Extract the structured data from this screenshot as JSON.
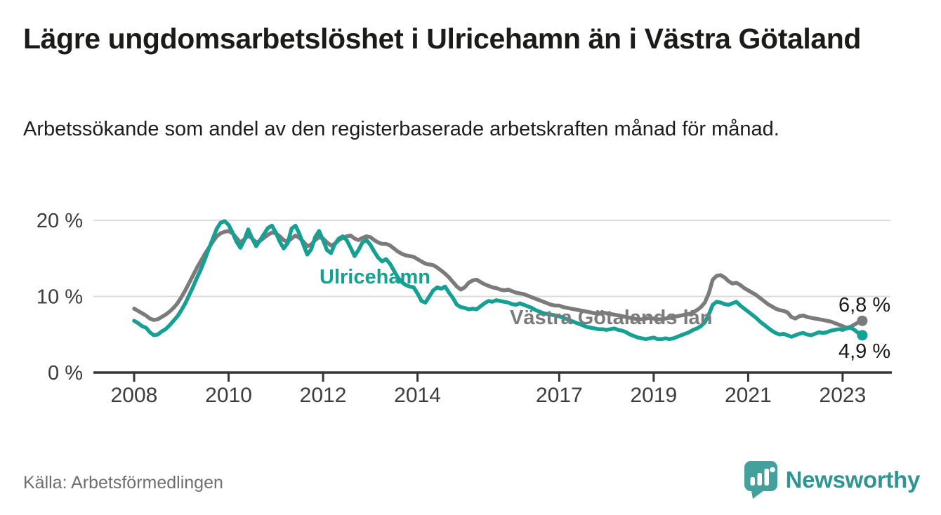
{
  "header": {
    "title": "Lägre ungdomsarbetslöshet i Ulricehamn än i Västra Götaland",
    "subtitle": "Arbetssökande som andel av den registerbaserade arbetskraften månad för månad."
  },
  "footer": {
    "source": "Källa: Arbetsförmedlingen",
    "brand": "Newsworthy"
  },
  "colors": {
    "background": "#ffffff",
    "title_text": "#1b1b19",
    "axis_text": "#3c3c3c",
    "gridline": "#dcdcdc",
    "axis_line": "#363636",
    "end_label_text": "#1a1a1a",
    "source_text": "#6f6f6f",
    "brand_teal": "#2e9593"
  },
  "chart_data": {
    "type": "line",
    "title": "Lägre ungdomsarbetslöshet i Ulricehamn än i Västra Götaland",
    "subtitle": "Arbetssökande som andel av den registerbaserade arbetskraften månad för månad.",
    "unit": "%",
    "interval": "month",
    "x_start": "2008-01",
    "x_end": "2023-06",
    "ylim": [
      0,
      21
    ],
    "grid": "horizontal-only",
    "legend_position": "inline-labels",
    "yticks": [
      {
        "value": 0,
        "label": "0 %"
      },
      {
        "value": 10,
        "label": "10 %"
      },
      {
        "value": 20,
        "label": "20 %"
      }
    ],
    "xticks": [
      {
        "year": 2008,
        "label": "2008"
      },
      {
        "year": 2010,
        "label": "2010"
      },
      {
        "year": 2012,
        "label": "2012"
      },
      {
        "year": 2014,
        "label": "2014"
      },
      {
        "year": 2017,
        "label": "2017"
      },
      {
        "year": 2019,
        "label": "2019"
      },
      {
        "year": 2021,
        "label": "2021"
      },
      {
        "year": 2023,
        "label": "2023"
      }
    ],
    "series": [
      {
        "name": "Västra Götalands län",
        "color": "#7b7b7b",
        "end_label": "6,8 %",
        "end_value": 6.8,
        "values": [
          8.4,
          8.1,
          7.8,
          7.5,
          7.1,
          6.9,
          7.0,
          7.3,
          7.6,
          8.0,
          8.5,
          9.1,
          9.9,
          10.8,
          11.8,
          12.8,
          13.8,
          14.7,
          15.6,
          16.4,
          17.2,
          17.9,
          18.3,
          18.5,
          18.6,
          18.3,
          17.7,
          17.1,
          17.5,
          18.0,
          17.6,
          17.1,
          17.3,
          17.7,
          18.1,
          18.4,
          18.3,
          17.9,
          17.4,
          17.2,
          17.6,
          18.0,
          17.7,
          17.2,
          16.6,
          16.8,
          17.4,
          17.8,
          17.6,
          17.1,
          16.7,
          16.9,
          17.4,
          17.7,
          17.9,
          18.0,
          17.6,
          17.4,
          17.7,
          17.9,
          17.8,
          17.4,
          17.1,
          16.9,
          16.9,
          16.7,
          16.3,
          15.9,
          15.6,
          15.4,
          15.3,
          15.2,
          14.9,
          14.6,
          14.3,
          14.2,
          14.1,
          13.8,
          13.4,
          13.0,
          12.5,
          11.9,
          11.3,
          10.9,
          11.2,
          11.8,
          12.1,
          12.2,
          11.9,
          11.6,
          11.4,
          11.2,
          11.1,
          10.9,
          10.8,
          10.9,
          10.7,
          10.5,
          10.4,
          10.3,
          10.1,
          9.9,
          9.7,
          9.5,
          9.3,
          9.1,
          8.9,
          8.8,
          8.8,
          8.6,
          8.5,
          8.4,
          8.3,
          8.2,
          8.1,
          8.0,
          7.9,
          7.8,
          7.8,
          7.9,
          7.8,
          7.7,
          7.6,
          7.5,
          7.4,
          7.3,
          7.2,
          7.1,
          7.0,
          7.0,
          7.1,
          7.2,
          7.1,
          7.0,
          7.0,
          7.1,
          7.2,
          7.3,
          7.4,
          7.5,
          7.6,
          7.7,
          7.9,
          8.2,
          8.6,
          9.2,
          10.4,
          12.2,
          12.7,
          12.8,
          12.5,
          12.0,
          11.7,
          11.8,
          11.5,
          11.1,
          10.8,
          10.5,
          10.2,
          9.8,
          9.4,
          9.0,
          8.7,
          8.4,
          8.2,
          8.1,
          7.9,
          7.3,
          7.1,
          7.4,
          7.5,
          7.3,
          7.2,
          7.1,
          7.0,
          6.9,
          6.8,
          6.7,
          6.5,
          6.3,
          6.1,
          5.9,
          6.0,
          6.3,
          6.6,
          6.8
        ]
      },
      {
        "name": "Ulricehamn",
        "color": "#16a094",
        "end_label": "4,9 %",
        "end_value": 4.9,
        "values": [
          6.8,
          6.5,
          6.1,
          5.9,
          5.3,
          4.9,
          5.0,
          5.4,
          5.7,
          6.2,
          6.8,
          7.4,
          8.2,
          9.1,
          10.2,
          11.3,
          12.5,
          13.6,
          14.9,
          16.3,
          17.6,
          18.9,
          19.7,
          19.9,
          19.4,
          18.4,
          17.2,
          16.4,
          17.4,
          18.8,
          17.6,
          16.6,
          17.4,
          18.2,
          19.0,
          19.3,
          18.4,
          17.2,
          16.3,
          17.0,
          18.9,
          19.3,
          18.2,
          16.8,
          15.5,
          16.2,
          17.8,
          18.6,
          17.4,
          16.1,
          15.7,
          16.9,
          17.6,
          17.9,
          17.4,
          16.4,
          15.3,
          16.1,
          17.1,
          17.4,
          16.8,
          15.9,
          15.1,
          14.6,
          14.9,
          14.3,
          13.4,
          12.5,
          11.9,
          11.5,
          11.3,
          11.2,
          10.4,
          9.4,
          9.2,
          10.0,
          10.8,
          11.2,
          11.0,
          11.3,
          10.5,
          9.8,
          8.9,
          8.6,
          8.5,
          8.3,
          8.4,
          8.3,
          8.7,
          9.1,
          9.4,
          9.3,
          9.5,
          9.4,
          9.3,
          9.2,
          9.0,
          8.9,
          9.1,
          8.9,
          8.7,
          8.5,
          8.2,
          8.0,
          7.8,
          7.7,
          7.6,
          7.5,
          7.4,
          7.2,
          7.0,
          6.8,
          6.6,
          6.4,
          6.2,
          6.0,
          5.9,
          5.8,
          5.7,
          5.7,
          5.6,
          5.7,
          5.8,
          5.6,
          5.5,
          5.3,
          5.0,
          4.8,
          4.6,
          4.5,
          4.4,
          4.5,
          4.6,
          4.4,
          4.4,
          4.5,
          4.4,
          4.5,
          4.7,
          4.9,
          5.1,
          5.3,
          5.6,
          5.8,
          6.1,
          6.6,
          7.6,
          8.9,
          9.3,
          9.2,
          9.0,
          8.9,
          9.1,
          9.3,
          8.8,
          8.4,
          8.0,
          7.6,
          7.2,
          6.7,
          6.3,
          5.9,
          5.5,
          5.2,
          5.0,
          5.1,
          4.9,
          4.7,
          4.9,
          5.1,
          5.2,
          5.0,
          4.9,
          5.1,
          5.3,
          5.2,
          5.3,
          5.5,
          5.6,
          5.7,
          5.6,
          5.8,
          5.9,
          5.6,
          5.2,
          4.9
        ]
      }
    ]
  }
}
